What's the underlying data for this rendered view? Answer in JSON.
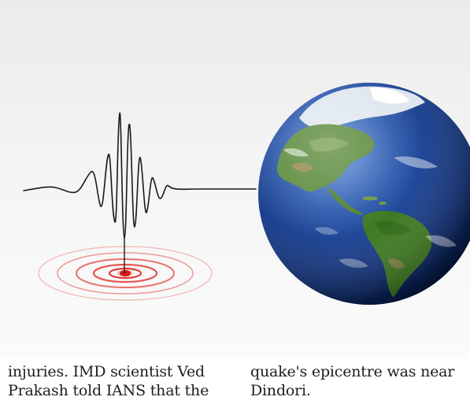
{
  "article": {
    "columns": [
      {
        "lines": [
          "injuries. IMD scientist Ved",
          "Prakash told IANS that the"
        ]
      },
      {
        "lines": [
          "quake's epicentre was near",
          "Dindori."
        ]
      }
    ]
  },
  "illustration": {
    "subject": "seismograph-and-earth",
    "colors": {
      "waveform": "#1a1a1a",
      "epicentre": "#e0201b",
      "ring": "#e23a35",
      "ocean": "#1b3f8f",
      "land": "#4f8a2c",
      "background": "#f3f3f3"
    }
  }
}
